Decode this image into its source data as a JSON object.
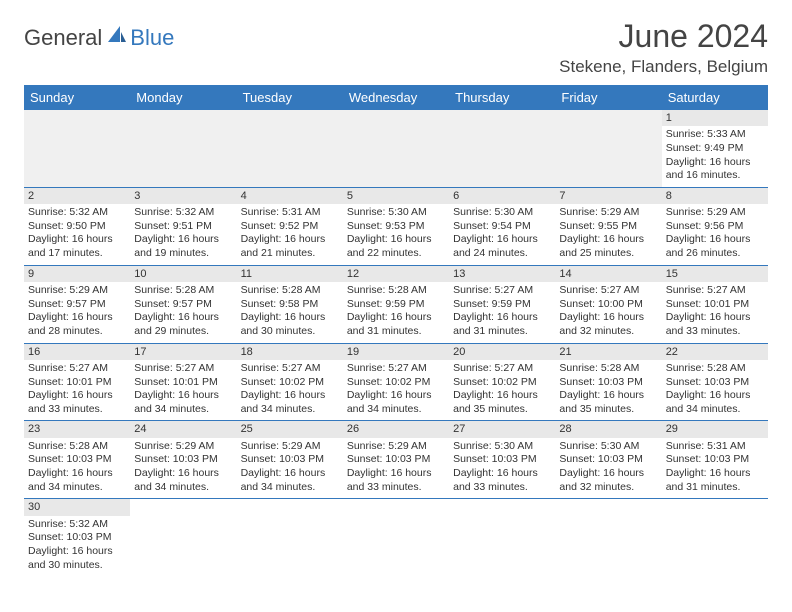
{
  "header": {
    "logo_part1": "General",
    "logo_part2": "Blue",
    "month_title": "June 2024",
    "location": "Stekene, Flanders, Belgium"
  },
  "colors": {
    "header_bg": "#3478bd",
    "header_text": "#ffffff",
    "daynum_bg": "#e8e8e8",
    "row_border": "#3478bd",
    "logo_blue": "#3478bd"
  },
  "weekdays": [
    "Sunday",
    "Monday",
    "Tuesday",
    "Wednesday",
    "Thursday",
    "Friday",
    "Saturday"
  ],
  "weeks": [
    [
      null,
      null,
      null,
      null,
      null,
      null,
      {
        "n": "1",
        "sr": "Sunrise: 5:33 AM",
        "ss": "Sunset: 9:49 PM",
        "d1": "Daylight: 16 hours",
        "d2": "and 16 minutes."
      }
    ],
    [
      {
        "n": "2",
        "sr": "Sunrise: 5:32 AM",
        "ss": "Sunset: 9:50 PM",
        "d1": "Daylight: 16 hours",
        "d2": "and 17 minutes."
      },
      {
        "n": "3",
        "sr": "Sunrise: 5:32 AM",
        "ss": "Sunset: 9:51 PM",
        "d1": "Daylight: 16 hours",
        "d2": "and 19 minutes."
      },
      {
        "n": "4",
        "sr": "Sunrise: 5:31 AM",
        "ss": "Sunset: 9:52 PM",
        "d1": "Daylight: 16 hours",
        "d2": "and 21 minutes."
      },
      {
        "n": "5",
        "sr": "Sunrise: 5:30 AM",
        "ss": "Sunset: 9:53 PM",
        "d1": "Daylight: 16 hours",
        "d2": "and 22 minutes."
      },
      {
        "n": "6",
        "sr": "Sunrise: 5:30 AM",
        "ss": "Sunset: 9:54 PM",
        "d1": "Daylight: 16 hours",
        "d2": "and 24 minutes."
      },
      {
        "n": "7",
        "sr": "Sunrise: 5:29 AM",
        "ss": "Sunset: 9:55 PM",
        "d1": "Daylight: 16 hours",
        "d2": "and 25 minutes."
      },
      {
        "n": "8",
        "sr": "Sunrise: 5:29 AM",
        "ss": "Sunset: 9:56 PM",
        "d1": "Daylight: 16 hours",
        "d2": "and 26 minutes."
      }
    ],
    [
      {
        "n": "9",
        "sr": "Sunrise: 5:29 AM",
        "ss": "Sunset: 9:57 PM",
        "d1": "Daylight: 16 hours",
        "d2": "and 28 minutes."
      },
      {
        "n": "10",
        "sr": "Sunrise: 5:28 AM",
        "ss": "Sunset: 9:57 PM",
        "d1": "Daylight: 16 hours",
        "d2": "and 29 minutes."
      },
      {
        "n": "11",
        "sr": "Sunrise: 5:28 AM",
        "ss": "Sunset: 9:58 PM",
        "d1": "Daylight: 16 hours",
        "d2": "and 30 minutes."
      },
      {
        "n": "12",
        "sr": "Sunrise: 5:28 AM",
        "ss": "Sunset: 9:59 PM",
        "d1": "Daylight: 16 hours",
        "d2": "and 31 minutes."
      },
      {
        "n": "13",
        "sr": "Sunrise: 5:27 AM",
        "ss": "Sunset: 9:59 PM",
        "d1": "Daylight: 16 hours",
        "d2": "and 31 minutes."
      },
      {
        "n": "14",
        "sr": "Sunrise: 5:27 AM",
        "ss": "Sunset: 10:00 PM",
        "d1": "Daylight: 16 hours",
        "d2": "and 32 minutes."
      },
      {
        "n": "15",
        "sr": "Sunrise: 5:27 AM",
        "ss": "Sunset: 10:01 PM",
        "d1": "Daylight: 16 hours",
        "d2": "and 33 minutes."
      }
    ],
    [
      {
        "n": "16",
        "sr": "Sunrise: 5:27 AM",
        "ss": "Sunset: 10:01 PM",
        "d1": "Daylight: 16 hours",
        "d2": "and 33 minutes."
      },
      {
        "n": "17",
        "sr": "Sunrise: 5:27 AM",
        "ss": "Sunset: 10:01 PM",
        "d1": "Daylight: 16 hours",
        "d2": "and 34 minutes."
      },
      {
        "n": "18",
        "sr": "Sunrise: 5:27 AM",
        "ss": "Sunset: 10:02 PM",
        "d1": "Daylight: 16 hours",
        "d2": "and 34 minutes."
      },
      {
        "n": "19",
        "sr": "Sunrise: 5:27 AM",
        "ss": "Sunset: 10:02 PM",
        "d1": "Daylight: 16 hours",
        "d2": "and 34 minutes."
      },
      {
        "n": "20",
        "sr": "Sunrise: 5:27 AM",
        "ss": "Sunset: 10:02 PM",
        "d1": "Daylight: 16 hours",
        "d2": "and 35 minutes."
      },
      {
        "n": "21",
        "sr": "Sunrise: 5:28 AM",
        "ss": "Sunset: 10:03 PM",
        "d1": "Daylight: 16 hours",
        "d2": "and 35 minutes."
      },
      {
        "n": "22",
        "sr": "Sunrise: 5:28 AM",
        "ss": "Sunset: 10:03 PM",
        "d1": "Daylight: 16 hours",
        "d2": "and 34 minutes."
      }
    ],
    [
      {
        "n": "23",
        "sr": "Sunrise: 5:28 AM",
        "ss": "Sunset: 10:03 PM",
        "d1": "Daylight: 16 hours",
        "d2": "and 34 minutes."
      },
      {
        "n": "24",
        "sr": "Sunrise: 5:29 AM",
        "ss": "Sunset: 10:03 PM",
        "d1": "Daylight: 16 hours",
        "d2": "and 34 minutes."
      },
      {
        "n": "25",
        "sr": "Sunrise: 5:29 AM",
        "ss": "Sunset: 10:03 PM",
        "d1": "Daylight: 16 hours",
        "d2": "and 34 minutes."
      },
      {
        "n": "26",
        "sr": "Sunrise: 5:29 AM",
        "ss": "Sunset: 10:03 PM",
        "d1": "Daylight: 16 hours",
        "d2": "and 33 minutes."
      },
      {
        "n": "27",
        "sr": "Sunrise: 5:30 AM",
        "ss": "Sunset: 10:03 PM",
        "d1": "Daylight: 16 hours",
        "d2": "and 33 minutes."
      },
      {
        "n": "28",
        "sr": "Sunrise: 5:30 AM",
        "ss": "Sunset: 10:03 PM",
        "d1": "Daylight: 16 hours",
        "d2": "and 32 minutes."
      },
      {
        "n": "29",
        "sr": "Sunrise: 5:31 AM",
        "ss": "Sunset: 10:03 PM",
        "d1": "Daylight: 16 hours",
        "d2": "and 31 minutes."
      }
    ],
    [
      {
        "n": "30",
        "sr": "Sunrise: 5:32 AM",
        "ss": "Sunset: 10:03 PM",
        "d1": "Daylight: 16 hours",
        "d2": "and 30 minutes."
      },
      null,
      null,
      null,
      null,
      null,
      null
    ]
  ]
}
